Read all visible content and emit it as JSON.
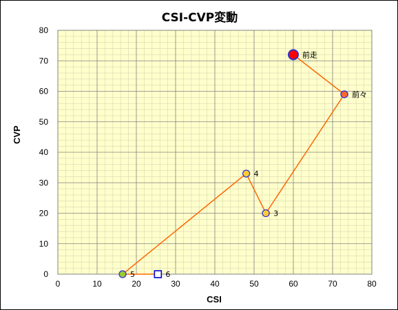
{
  "chart_data": {
    "type": "scatter",
    "title": "CSI-CVP変動",
    "xlabel": "CSI",
    "ylabel": "CVP",
    "xlim": [
      0,
      80
    ],
    "ylim": [
      0,
      80
    ],
    "x_ticks": [
      0,
      10,
      20,
      30,
      40,
      50,
      60,
      70,
      80
    ],
    "y_ticks": [
      0,
      10,
      20,
      30,
      40,
      50,
      60,
      70,
      80
    ],
    "grid": true,
    "minor_grid": true,
    "plot_background": "#ffffcc",
    "line_color": "#ff6600",
    "connected_order": [
      "前走",
      "前々",
      "3",
      "4",
      "5",
      "6"
    ],
    "points": [
      {
        "label": "前走",
        "x": 60,
        "y": 72,
        "marker": "circle-large",
        "fill": "#ff0000",
        "stroke": "#3333cc"
      },
      {
        "label": "前々",
        "x": 73,
        "y": 59,
        "marker": "circle",
        "fill": "#ff6633",
        "stroke": "#3333cc"
      },
      {
        "label": "3",
        "x": 53,
        "y": 20,
        "marker": "circle",
        "fill": "#ffcc33",
        "stroke": "#3333cc"
      },
      {
        "label": "4",
        "x": 48,
        "y": 33,
        "marker": "circle",
        "fill": "#ffcc33",
        "stroke": "#3333cc"
      },
      {
        "label": "5",
        "x": 16.5,
        "y": 0,
        "marker": "circle",
        "fill": "#99cc33",
        "stroke": "#3333cc"
      },
      {
        "label": "6",
        "x": 25.5,
        "y": 0,
        "marker": "square",
        "fill": "#ffffff",
        "stroke": "#0000cc"
      }
    ]
  }
}
